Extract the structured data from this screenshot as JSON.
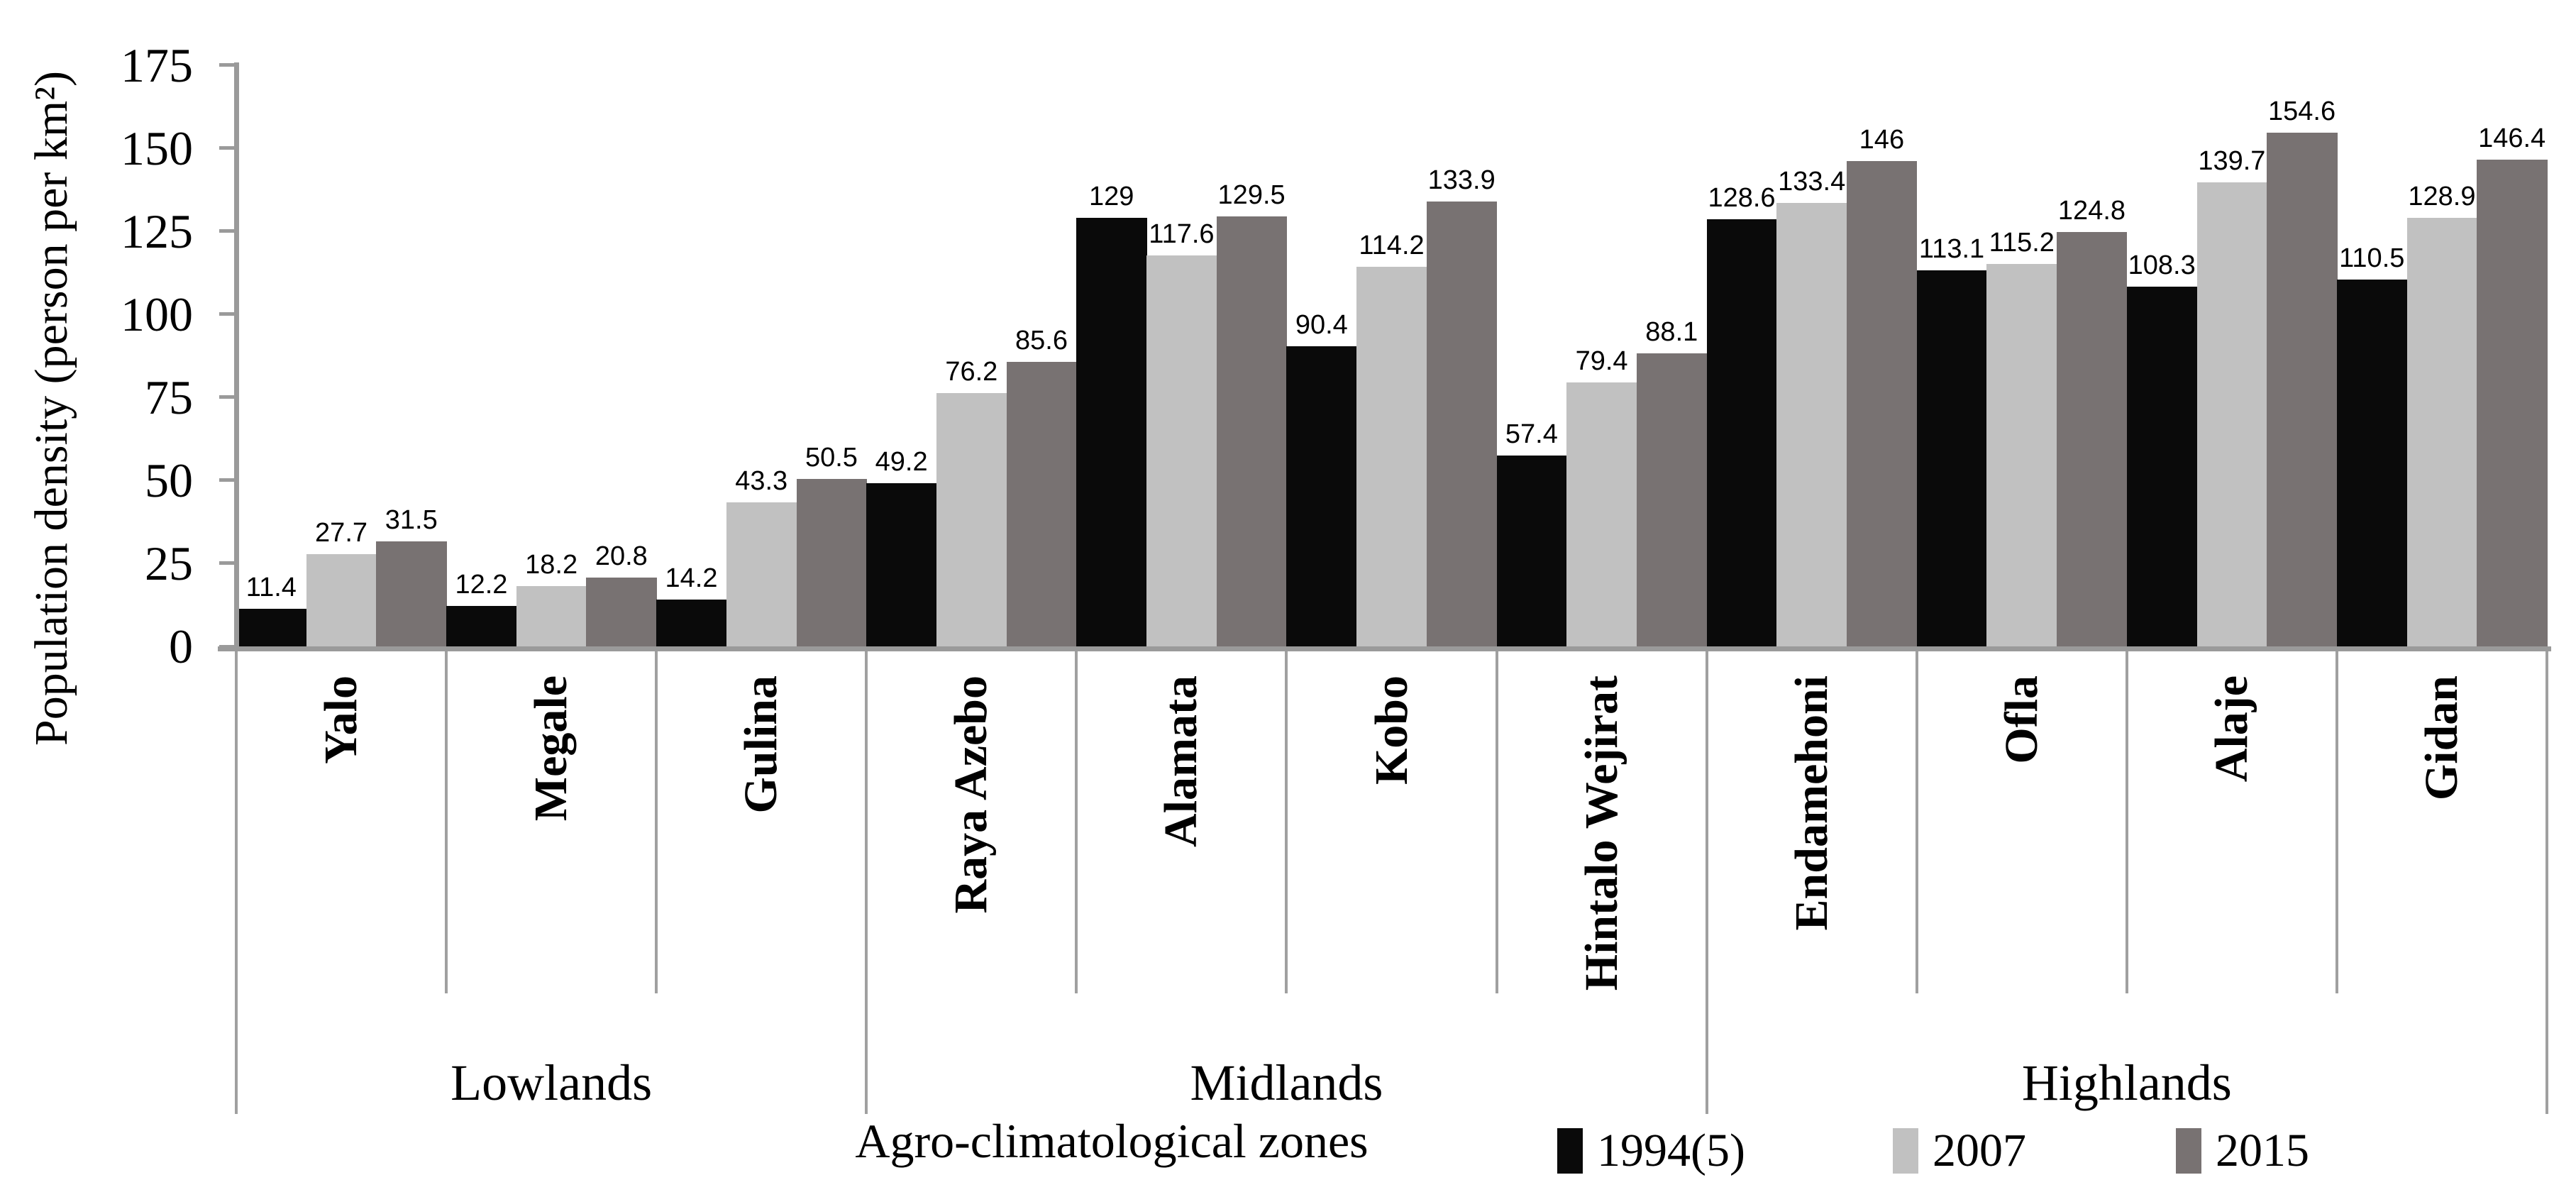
{
  "chart_data": {
    "type": "bar",
    "title": "",
    "ylabel": "Population density (person per km²)",
    "xlabel": "Agro-climatological zones",
    "ylim": [
      0,
      175
    ],
    "yticks": [
      0,
      25,
      50,
      75,
      100,
      125,
      150,
      175
    ],
    "grid": false,
    "legend_position": "bottom-right",
    "categories": [
      "Yalo",
      "Megale",
      "Gulina",
      "Raya Azebo",
      "Alamata",
      "Kobo",
      "Hintalo Wejirat",
      "Endamehoni",
      "Ofla",
      "Alaje",
      "Gidan"
    ],
    "zones": [
      {
        "label": "Lowlands",
        "districts": 3
      },
      {
        "label": "Midlands",
        "districts": 4
      },
      {
        "label": "Highlands",
        "districts": 4
      }
    ],
    "series": [
      {
        "name": "1994(5)",
        "color": "#0a0a0a",
        "values": [
          11.4,
          12.2,
          14.2,
          49.2,
          129,
          90.4,
          57.4,
          128.6,
          113.1,
          108.3,
          110.5
        ]
      },
      {
        "name": "2007",
        "color": "#c1c1c1",
        "values": [
          27.7,
          18.2,
          43.3,
          76.2,
          117.6,
          114.2,
          79.4,
          133.4,
          115.2,
          139.7,
          128.9
        ]
      },
      {
        "name": "2015",
        "color": "#787272",
        "values": [
          31.5,
          20.8,
          50.5,
          85.6,
          129.5,
          133.9,
          88.1,
          146,
          124.8,
          154.6,
          146.4
        ]
      }
    ],
    "axis_color": "#9a9a9a",
    "separator_color": "#a0a0a0"
  }
}
